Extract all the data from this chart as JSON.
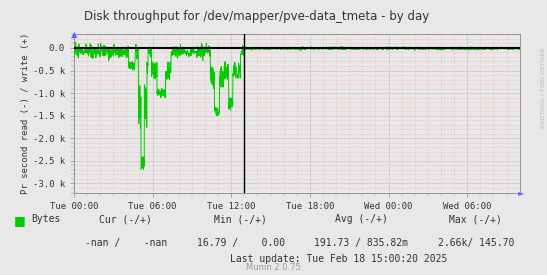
{
  "title": "Disk throughput for /dev/mapper/pve-data_tmeta - by day",
  "ylabel": "Pr second read (-) / write (+)",
  "bg_color": "#e8e8e8",
  "plot_bg_color": "#e8e8e8",
  "grid_color_major": "#cccccc",
  "grid_color_minor": "#ffaaaa",
  "line_color": "#00cc00",
  "border_color": "#aaaaaa",
  "ylim": [
    -3200,
    300
  ],
  "yticks": [
    0,
    -500,
    -1000,
    -1500,
    -2000,
    -2500,
    -3000
  ],
  "ytick_labels": [
    "0.0",
    "-0.5 k",
    "-1.0 k",
    "-1.5 k",
    "-2.0 k",
    "-2.5 k",
    "-3.0 k"
  ],
  "xtick_labels": [
    "Tue 00:00",
    "Tue 06:00",
    "Tue 12:00",
    "Tue 18:00",
    "Wed 00:00",
    "Wed 06:00"
  ],
  "xtick_positions": [
    0,
    360,
    720,
    1080,
    1440,
    1800
  ],
  "total_points": 2040,
  "legend_label": "Bytes",
  "legend_color": "#00cc00",
  "munin_version": "Munin 2.0.75",
  "rrdtool_label": "RRDTOOL / TOBI OETIKER",
  "vline_x": 780
}
